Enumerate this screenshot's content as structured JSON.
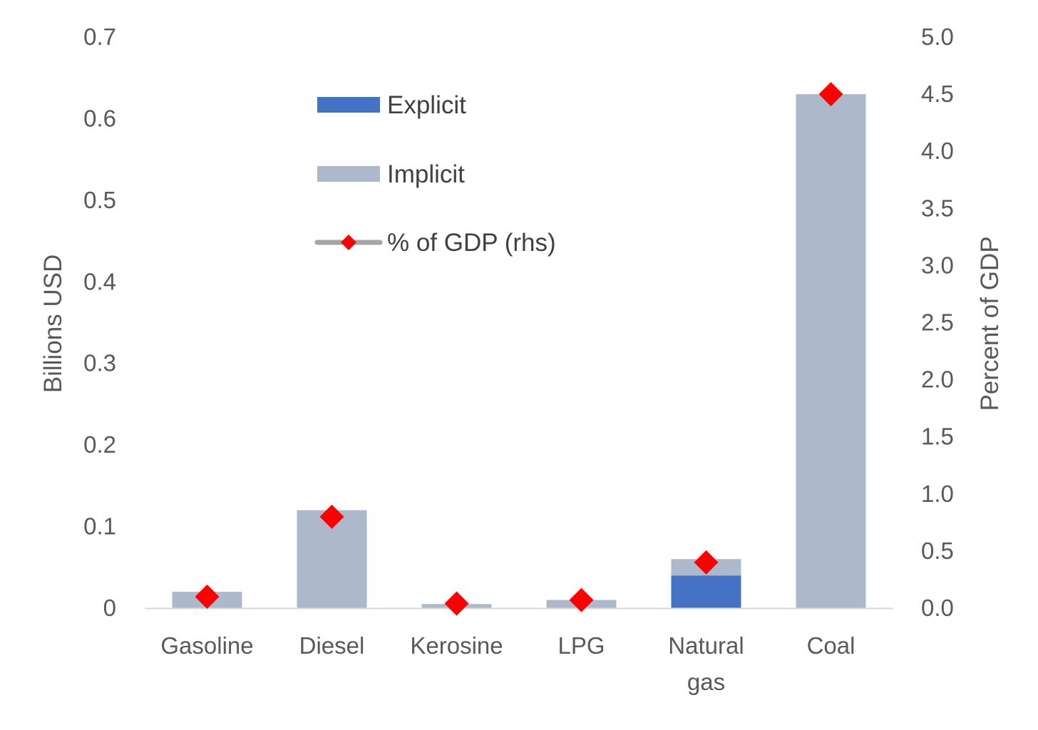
{
  "chart_data": {
    "type": "bar",
    "stacked": true,
    "title": "",
    "categories": [
      [
        "Gasoline"
      ],
      [
        "Diesel"
      ],
      [
        "Kerosine"
      ],
      [
        "LPG"
      ],
      [
        "Natural",
        "gas"
      ],
      [
        "Coal"
      ]
    ],
    "series": [
      {
        "name": "Explicit",
        "type": "bar",
        "axis": "left",
        "color": "#4472C4",
        "values": [
          0,
          0,
          0,
          0,
          0.04,
          0
        ]
      },
      {
        "name": "Implicit",
        "type": "bar",
        "axis": "left",
        "color": "#ADB9CA",
        "values": [
          0.02,
          0.12,
          0.005,
          0.01,
          0.02,
          0.63
        ]
      },
      {
        "name": "% of GDP (rhs)",
        "type": "marker",
        "axis": "right",
        "color": "#FF0000",
        "line_color": "#A5A5A5",
        "values": [
          0.1,
          0.8,
          0.04,
          0.07,
          0.4,
          4.5
        ]
      }
    ],
    "ylabel": "Billions USD",
    "ylim": [
      0,
      0.7
    ],
    "yticks": [
      "0",
      "0.1",
      "0.2",
      "0.3",
      "0.4",
      "0.5",
      "0.6",
      "0.7"
    ],
    "y2label": "Percent of GDP",
    "y2lim": [
      0,
      5
    ],
    "y2ticks": [
      "0.0",
      "0.5",
      "1.0",
      "1.5",
      "2.0",
      "2.5",
      "3.0",
      "3.5",
      "4.0",
      "4.5",
      "5.0"
    ],
    "legend_position": "top-left",
    "grid": false
  }
}
